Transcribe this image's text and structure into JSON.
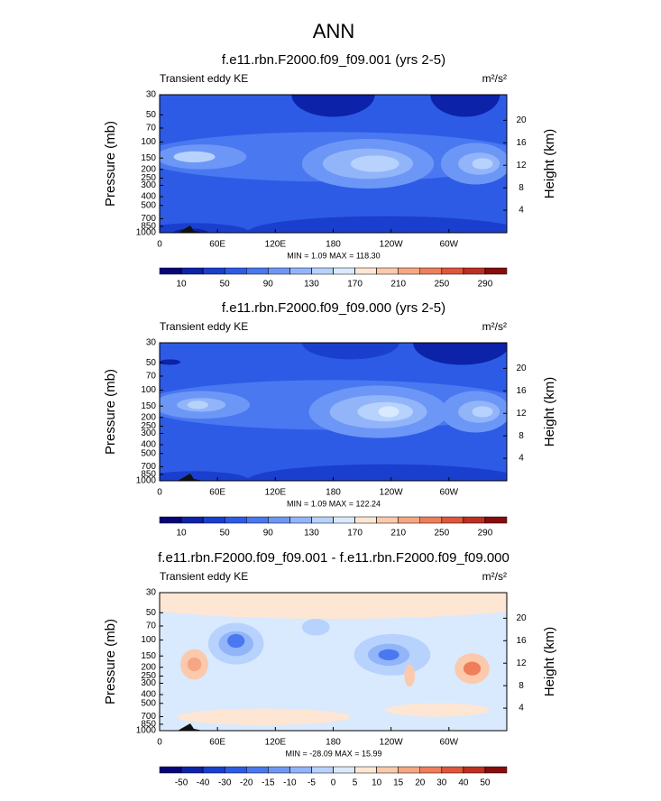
{
  "title": "ANN",
  "chart_data": [
    {
      "type": "contour",
      "title": "f.e11.rbn.F2000.f09_f09.001 (yrs 2-5)",
      "left_label": "Transient eddy KE",
      "units": "m²/s²",
      "ylabel": "Pressure (mb)",
      "y2label": "Height (km)",
      "log_y": true,
      "xlim": [
        0,
        360
      ],
      "xticks": [
        0,
        {
          "value": 60,
          "label": "60E"
        },
        {
          "value": 120,
          "label": "120E"
        },
        180,
        {
          "value": 240,
          "label": "120W"
        },
        {
          "value": 300,
          "label": "60W"
        }
      ],
      "ylim": [
        30,
        1000
      ],
      "yticks": [
        30,
        50,
        70,
        100,
        150,
        200,
        250,
        300,
        400,
        500,
        700,
        850,
        1000
      ],
      "y2lim": [
        0,
        24.55
      ],
      "y2ticks": [
        4,
        8,
        12,
        16,
        20
      ],
      "stats": "MIN =   1.09  MAX = 118.30",
      "colorbar": {
        "levels": [
          10,
          30,
          50,
          70,
          90,
          110,
          130,
          150,
          170,
          190,
          210,
          230,
          250,
          270,
          290
        ],
        "label_every": 2,
        "colors": [
          "#05067a",
          "#0c22a8",
          "#1a3fcf",
          "#2d5be6",
          "#4a78f0",
          "#6d97f6",
          "#92b5fa",
          "#b7d2fd",
          "#d9e9fe",
          "#fde6d3",
          "#fbc9ab",
          "#f7a683",
          "#ef7e5a",
          "#df563a",
          "#be2f22",
          "#880c0c"
        ]
      }
    },
    {
      "type": "contour",
      "title": "f.e11.rbn.F2000.f09_f09.000 (yrs 2-5)",
      "left_label": "Transient eddy KE",
      "units": "m²/s²",
      "ylabel": "Pressure (mb)",
      "y2label": "Height (km)",
      "log_y": true,
      "xlim": [
        0,
        360
      ],
      "xticks": [
        0,
        {
          "value": 60,
          "label": "60E"
        },
        {
          "value": 120,
          "label": "120E"
        },
        180,
        {
          "value": 240,
          "label": "120W"
        },
        {
          "value": 300,
          "label": "60W"
        }
      ],
      "ylim": [
        30,
        1000
      ],
      "yticks": [
        30,
        50,
        70,
        100,
        150,
        200,
        250,
        300,
        400,
        500,
        700,
        850,
        1000
      ],
      "y2lim": [
        0,
        24.55
      ],
      "y2ticks": [
        4,
        8,
        12,
        16,
        20
      ],
      "stats": "MIN =   1.09  MAX = 122.24",
      "colorbar": {
        "levels": [
          10,
          30,
          50,
          70,
          90,
          110,
          130,
          150,
          170,
          190,
          210,
          230,
          250,
          270,
          290
        ],
        "label_every": 2,
        "colors": [
          "#05067a",
          "#0c22a8",
          "#1a3fcf",
          "#2d5be6",
          "#4a78f0",
          "#6d97f6",
          "#92b5fa",
          "#b7d2fd",
          "#d9e9fe",
          "#fde6d3",
          "#fbc9ab",
          "#f7a683",
          "#ef7e5a",
          "#df563a",
          "#be2f22",
          "#880c0c"
        ]
      }
    },
    {
      "type": "contour",
      "title": "f.e11.rbn.F2000.f09_f09.001 - f.e11.rbn.F2000.f09_f09.000",
      "left_label": "Transient eddy KE",
      "units": "m²/s²",
      "ylabel": "Pressure (mb)",
      "y2label": "Height (km)",
      "log_y": true,
      "xlim": [
        0,
        360
      ],
      "xticks": [
        0,
        {
          "value": 60,
          "label": "60E"
        },
        {
          "value": 120,
          "label": "120E"
        },
        180,
        {
          "value": 240,
          "label": "120W"
        },
        {
          "value": 300,
          "label": "60W"
        }
      ],
      "ylim": [
        30,
        1000
      ],
      "yticks": [
        30,
        50,
        70,
        100,
        150,
        200,
        250,
        300,
        400,
        500,
        700,
        850,
        1000
      ],
      "y2lim": [
        0,
        24.55
      ],
      "y2ticks": [
        4,
        8,
        12,
        16,
        20
      ],
      "stats": "MIN = -28.09  MAX = 15.99",
      "colorbar": {
        "levels": [
          -50,
          -40,
          -30,
          -20,
          -15,
          -10,
          -5,
          0,
          5,
          10,
          15,
          20,
          30,
          40,
          50
        ],
        "label_every": 1,
        "colors": [
          "#05067a",
          "#0c22a8",
          "#1a3fcf",
          "#2d5be6",
          "#4a78f0",
          "#6d97f6",
          "#92b5fa",
          "#b7d2fd",
          "#d9e9fe",
          "#fde6d3",
          "#fbc9ab",
          "#f7a683",
          "#ef7e5a",
          "#df563a",
          "#be2f22",
          "#880c0c"
        ]
      }
    }
  ]
}
